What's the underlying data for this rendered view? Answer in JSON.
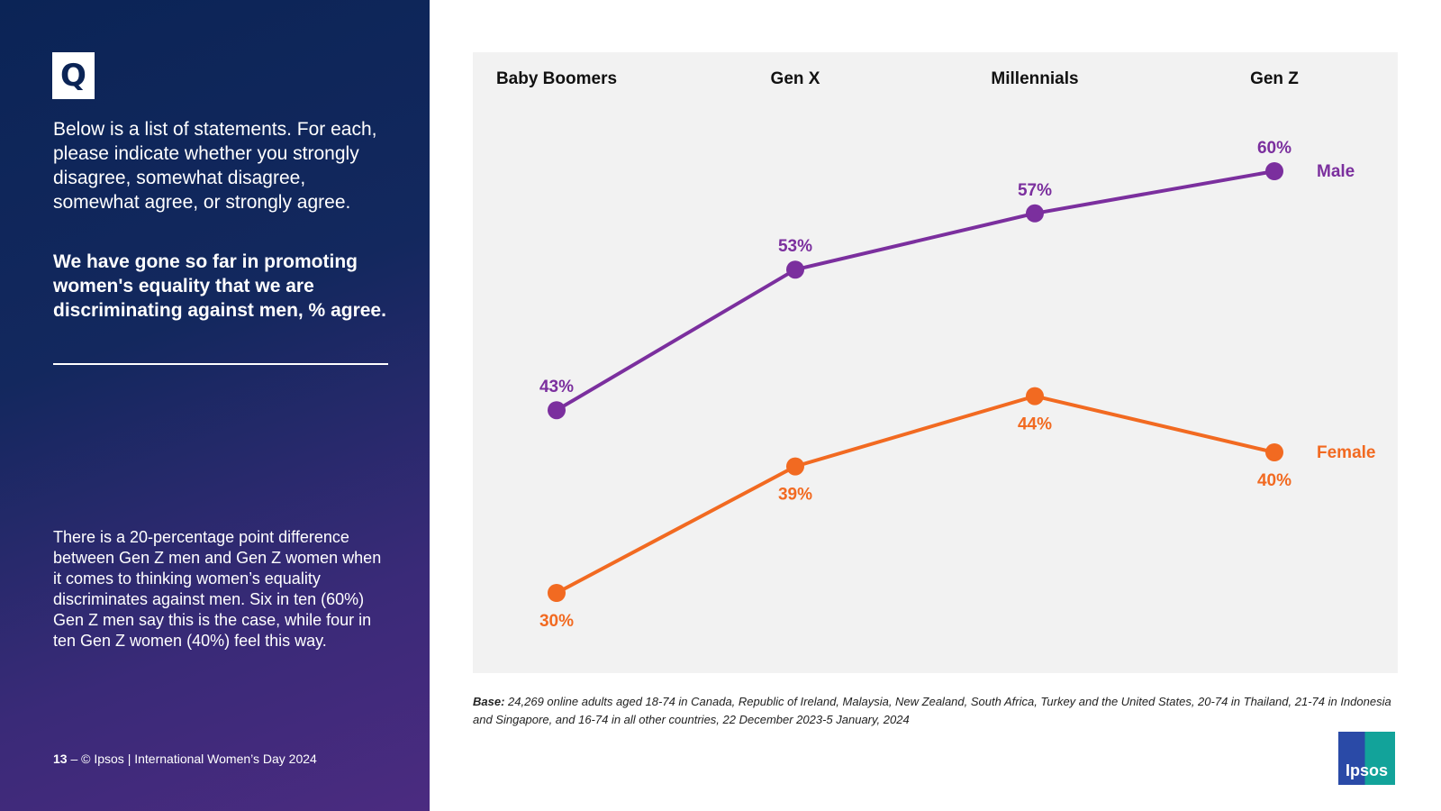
{
  "sidebar": {
    "q_icon": "Q",
    "question": "Below is a list of statements. For each, please indicate whether you strongly disagree, somewhat disagree, somewhat agree, or strongly agree.",
    "statement": "We have gone so far in promoting women's equality that we are discriminating against men, % agree.",
    "note": "There is a 20-percentage point difference between Gen Z men and Gen Z women when it comes to thinking women’s equality discriminates against men. Six in ten (60%) Gen Z men say this is the case, while four in ten Gen Z women (40%) feel this way.",
    "page_number": "13",
    "footer": " – © Ipsos | International Women’s Day 2024"
  },
  "base": {
    "label": "Base:",
    "text": " 24,269 online adults aged 18-74 in Canada, Republic of Ireland, Malaysia, New Zealand, South Africa, Turkey and the United States, 20-74 in Thailand, 21-74 in Indonesia and Singapore, and 16-74 in all other countries, 22 December 2023-5 January, 2024"
  },
  "logo": "Ipsos",
  "chart_data": {
    "type": "line",
    "categories": [
      "Baby Boomers",
      "Gen X",
      "Millennials",
      "Gen Z"
    ],
    "series": [
      {
        "name": "Male",
        "values": [
          43,
          53,
          57,
          60
        ],
        "color": "#7b2f9e"
      },
      {
        "name": "Female",
        "values": [
          30,
          39,
          44,
          40
        ],
        "color": "#f26a21"
      }
    ],
    "unit": "%",
    "legend": "right end of lines",
    "grid": false
  }
}
